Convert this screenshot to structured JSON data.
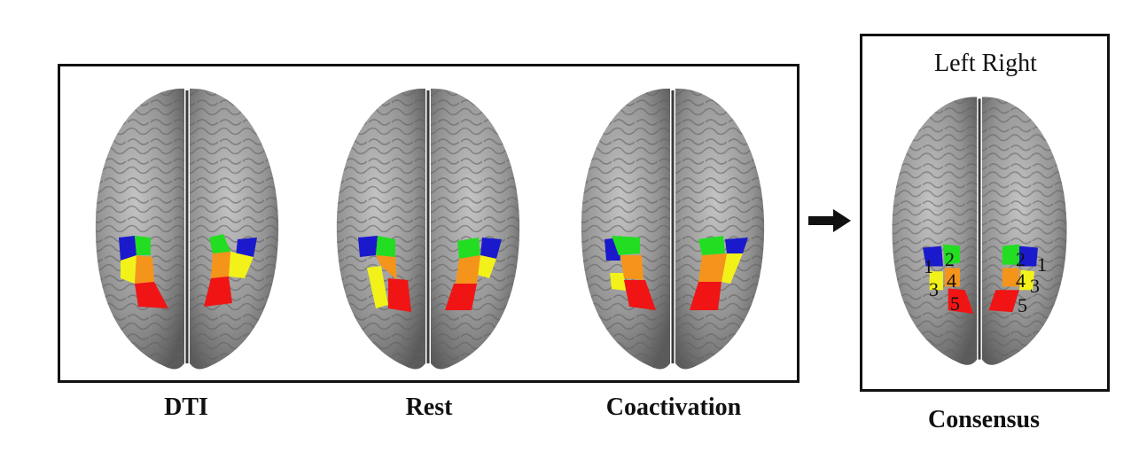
{
  "panels": {
    "dti": {
      "label": "DTI"
    },
    "rest": {
      "label": "Rest"
    },
    "coactivation": {
      "label": "Coactivation"
    },
    "consensus": {
      "label": "Consensus",
      "header": "Left Right"
    }
  },
  "cluster_numbers": {
    "left": [
      "1",
      "2",
      "3",
      "4",
      "5"
    ],
    "right": [
      "2",
      "1",
      "4",
      "3",
      "5"
    ]
  },
  "colors": {
    "c1": "#1a1acc",
    "c2": "#22dd22",
    "c3": "#f2f21a",
    "c4": "#f5941a",
    "c5": "#f01414",
    "brain": "#8c8c8c",
    "brain_light": "#b4b4b4",
    "frame": "#111111"
  }
}
